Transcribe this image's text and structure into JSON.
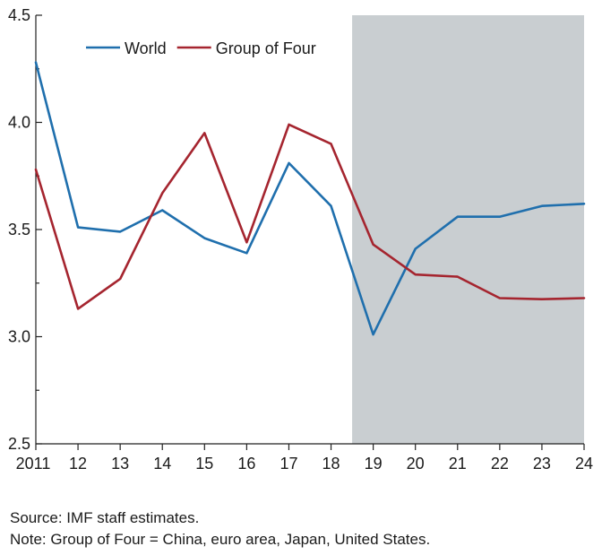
{
  "chart_data": {
    "type": "line",
    "title": "",
    "xlabel": "",
    "ylabel": "",
    "categories": [
      "2011",
      "12",
      "13",
      "14",
      "15",
      "16",
      "17",
      "18",
      "19",
      "20",
      "21",
      "22",
      "23",
      "24"
    ],
    "x": [
      2011,
      2012,
      2013,
      2014,
      2015,
      2016,
      2017,
      2018,
      2019,
      2020,
      2021,
      2022,
      2023,
      2024
    ],
    "ylim": [
      2.5,
      4.5
    ],
    "yticks": [
      2.5,
      2.75,
      3.0,
      3.25,
      3.5,
      3.75,
      4.0,
      4.25,
      4.5
    ],
    "ytick_labels": [
      "2.5",
      "",
      "3.0",
      "",
      "3.5",
      "",
      "4.0",
      "",
      "4.5"
    ],
    "shaded_region": {
      "from": 2018.5,
      "to": 2024,
      "color": "#c9ced1",
      "meaning": "projection period"
    },
    "legend_position": "top-left",
    "grid": false,
    "series": [
      {
        "name": "World",
        "color": "#1f6fad",
        "values": [
          4.28,
          3.51,
          3.49,
          3.59,
          3.46,
          3.39,
          3.81,
          3.61,
          3.01,
          3.41,
          3.56,
          3.56,
          3.61,
          3.62
        ]
      },
      {
        "name": "Group of Four",
        "color": "#a5252f",
        "values": [
          3.78,
          3.13,
          3.27,
          3.67,
          3.95,
          3.44,
          3.99,
          3.9,
          3.43,
          3.29,
          3.28,
          3.18,
          3.175,
          3.18
        ]
      }
    ]
  },
  "notes": {
    "source": "Source: IMF staff estimates.",
    "note": "Note: Group of Four = China, euro area, Japan, United States."
  }
}
